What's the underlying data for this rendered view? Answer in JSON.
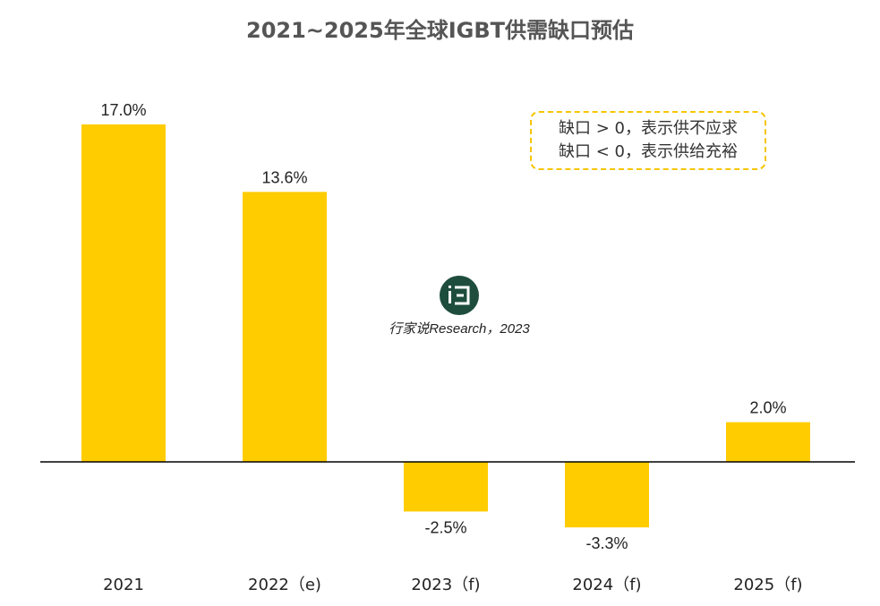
{
  "page": {
    "title": "2021~2025年全球IGBT供需缺口预估"
  },
  "note": {
    "line1": "缺口 > 0，表示供不应求",
    "line2": "缺口 < 0，表示供给充裕"
  },
  "watermark": {
    "text": "行家说Research，2023",
    "logo_icon": "brand-logo-icon"
  },
  "colors": {
    "bar": "#FFCC00",
    "axis": "#000000",
    "title": "#555555",
    "note_border": "#F5C500"
  },
  "chart_data": {
    "type": "bar",
    "categories": [
      "2021",
      "2022（e)",
      "2023（f)",
      "2024（f)",
      "2025（f)"
    ],
    "values": [
      17.0,
      13.6,
      -2.5,
      -3.3,
      2.0
    ],
    "data_labels": [
      "17.0%",
      "13.6%",
      "-2.5%",
      "-3.3%",
      "2.0%"
    ],
    "unit": "%",
    "ylim": [
      -5,
      20
    ],
    "grid": false,
    "legend": "none"
  }
}
